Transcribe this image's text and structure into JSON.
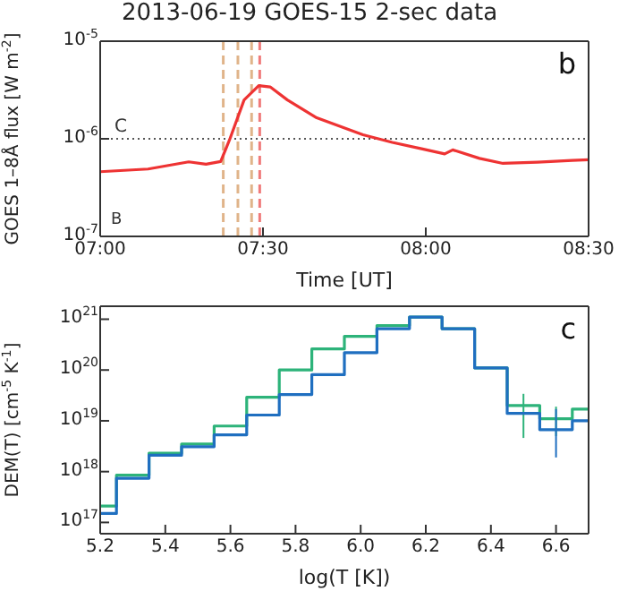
{
  "chart_data": [
    {
      "type": "line",
      "title": "2013-06-19  GOES-15  2-sec data",
      "xlabel": "Time [UT]",
      "ylabel": "GOES 1–8Å flux [W m$^{-2}$]",
      "log": "y",
      "xlim": [
        7,
        8.5
      ],
      "xticks": [
        {
          "value": 7,
          "label": "07:00"
        },
        {
          "value": 7.5,
          "label": "07:30"
        },
        {
          "value": 8,
          "label": "08:00"
        },
        {
          "value": 8.5,
          "label": "08:30"
        }
      ],
      "ylim": [
        1e-07,
        1e-05
      ],
      "yticks": [
        {
          "value": 1e-07,
          "label": "10$^{-7}$"
        },
        {
          "value": 1e-06,
          "label": "10$^{-6}$"
        },
        {
          "value": 1e-05,
          "label": "10$^{-5}$"
        }
      ],
      "x": [
        7,
        7.147,
        7.272,
        7.325,
        7.37,
        7.397,
        7.442,
        7.487,
        7.522,
        7.575,
        7.665,
        7.807,
        7.897,
        7.987,
        8.058,
        8.083,
        8.165,
        8.237,
        8.343,
        8.45,
        8.5
      ],
      "series": [
        {
          "color": "#ee3333",
          "values": [
            4.6e-07,
            4.9e-07,
            5.8e-07,
            5.5e-07,
            5.85e-07,
            9.7e-07,
            2.5e-06,
            3.5e-06,
            3.4e-06,
            2.5e-06,
            1.64e-06,
            1.1e-06,
            9.2e-07,
            7.9e-07,
            7e-07,
            7.7e-07,
            6.3e-07,
            5.6e-07,
            5.75e-07,
            6e-07,
            6.1e-07
          ]
        }
      ],
      "ref_lines": [
        {
          "axis": "y",
          "value": 1e-06,
          "label": "C",
          "color": "#555555",
          "line_style": "dotted"
        },
        {
          "axis": "x",
          "value": 7.378,
          "color": "#e0b48a",
          "line_style": "dashed"
        },
        {
          "axis": "x",
          "value": 7.423,
          "color": "#e0b48a",
          "line_style": "dashed"
        },
        {
          "axis": "x",
          "value": 7.465,
          "color": "#e0b48a",
          "line_style": "dashed"
        },
        {
          "axis": "x",
          "value": 7.49,
          "color": "#f07a7a",
          "line_style": "dashed"
        }
      ],
      "annotations": [
        "b",
        "B"
      ]
    },
    {
      "type": "step",
      "xlabel": "log(T [K])",
      "ylabel": "DEM(T) [cm$^{-5}$ K$^{-1}$]",
      "log": "y",
      "xlim": [
        5.2,
        6.7
      ],
      "xticks": [
        5.2,
        5.4,
        5.6,
        5.8,
        {
          "value": 6,
          "label": "6.0"
        },
        6.2,
        6.4,
        6.6
      ],
      "ylim": [
        6e+16,
        1.8e+21
      ],
      "yticks": [
        {
          "value": 1e+17,
          "label": "10$^{17}$"
        },
        {
          "value": 1e+18,
          "label": "10$^{18}$"
        },
        {
          "value": 1e+19,
          "label": "10$^{19}$"
        },
        {
          "value": 1e+20,
          "label": "10$^{20}$"
        },
        {
          "value": 1e+21,
          "label": "10$^{21}$"
        }
      ],
      "x": [
        5.2,
        5.3,
        5.4,
        5.5,
        5.6,
        5.7,
        5.8,
        5.9,
        6.0,
        6.1,
        6.2,
        6.3,
        6.4,
        6.5,
        6.6,
        6.7
      ],
      "series": [
        {
          "color": "#2db37a",
          "values": [
            2.1e+17,
            8.5e+17,
            2.3e+18,
            3.5e+18,
            7.9e+18,
            2.9e+19,
            1e+20,
            2.6e+20,
            4.6e+20,
            7.5e+20,
            1.1e+21,
            6.5e+20,
            1.1e+20,
            2e+19,
            1.1e+19,
            1.7e+19
          ],
          "errors": [
            null,
            null,
            null,
            null,
            null,
            null,
            null,
            null,
            null,
            null,
            null,
            null,
            null,
            [
              4.6e+18,
              3.4e+19
            ],
            [
              5e+18,
              1.9e+19
            ],
            null
          ]
        },
        {
          "color": "#1f6fc0",
          "values": [
            1.5e+17,
            7.4e+17,
            2.1e+18,
            3.1e+18,
            5.3e+18,
            1.3e+19,
            3.3e+19,
            8.1e+19,
            2.2e+20,
            6.5e+20,
            1.1e+21,
            6.5e+20,
            1.1e+20,
            1.4e+19,
            6.7e+18,
            1e+19
          ],
          "errors": [
            null,
            null,
            null,
            null,
            null,
            null,
            null,
            null,
            null,
            null,
            null,
            null,
            null,
            null,
            [
              1.9e+18,
              1.7e+19
            ],
            null
          ]
        }
      ],
      "annotations": [
        "c"
      ]
    }
  ]
}
